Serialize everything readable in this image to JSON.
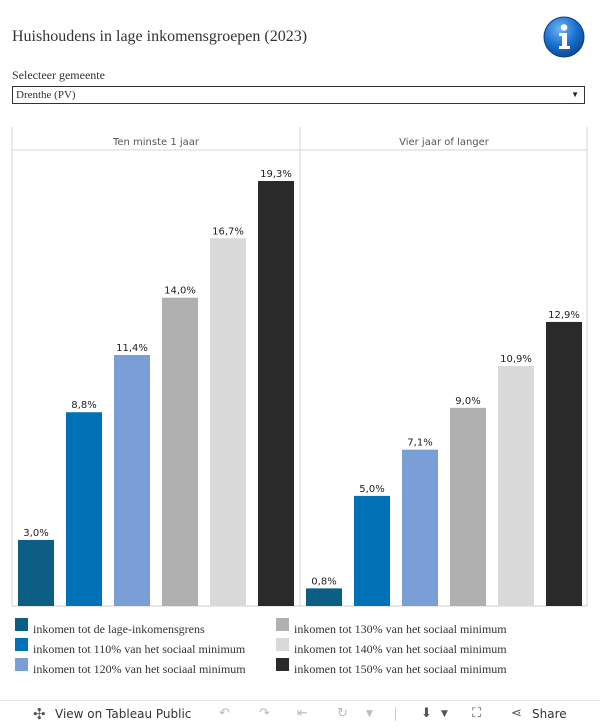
{
  "title": "Huishoudens in lage inkomensgroepen (2023)",
  "selector": {
    "label": "Selecteer gemeente",
    "value": "Drenthe (PV)"
  },
  "colors": [
    "#0c5e84",
    "#0272b6",
    "#7a9fd6",
    "#b0b0b0",
    "#d9d9d9",
    "#2a2a2a"
  ],
  "chart_data": {
    "type": "bar",
    "panels": [
      "Ten minste 1 jaar",
      "Vier jaar of langer"
    ],
    "categories": [
      "inkomen tot de lage-inkomensgrens",
      "inkomen tot 110% van het sociaal minimum",
      "inkomen tot 120% van het sociaal minimum",
      "inkomen tot 130% van het sociaal minimum",
      "inkomen tot 140% van het sociaal minimum",
      "inkomen tot 150% van het sociaal minimum"
    ],
    "series": [
      {
        "name": "Ten minste 1 jaar",
        "values": [
          3.0,
          8.8,
          11.4,
          14.0,
          16.7,
          19.3
        ],
        "labels": [
          "3,0%",
          "8,8%",
          "11,4%",
          "14,0%",
          "16,7%",
          "19,3%"
        ]
      },
      {
        "name": "Vier jaar of langer",
        "values": [
          0.8,
          5.0,
          7.1,
          9.0,
          10.9,
          12.9
        ],
        "labels": [
          "0,8%",
          "5,0%",
          "7,1%",
          "9,0%",
          "10,9%",
          "12,9%"
        ]
      }
    ],
    "ylim": [
      0,
      20.1
    ],
    "legend_position": "bottom"
  },
  "toolbar": {
    "view_label": "View on Tableau Public",
    "share_label": "Share"
  }
}
